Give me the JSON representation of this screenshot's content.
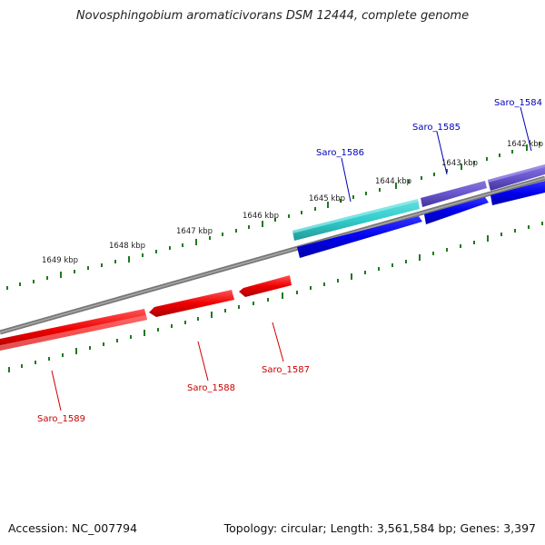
{
  "title": "Novosphingobium aromaticivorans DSM 12444, complete genome",
  "footer": {
    "accession": "Accession: NC_007794",
    "topology": "Topology: circular; Length: 3,561,584 bp; Genes: 3,397"
  },
  "colors": {
    "backbone": "#888888",
    "ticks": "#1f7a1f",
    "forward_genes": "#0000ee",
    "forward_label": "#0000bb",
    "reverse_genes": "#ee0000",
    "reverse_label": "#cc0000",
    "gene_1586": "#33cccc",
    "gene_1585": "#6655cc"
  },
  "scale_labels": [
    {
      "kbp": 1642,
      "label": "1642 kbp"
    },
    {
      "kbp": 1643,
      "label": "1643 kbp"
    },
    {
      "kbp": 1644,
      "label": "1644 kbp"
    },
    {
      "kbp": 1645,
      "label": "1645 kbp"
    },
    {
      "kbp": 1646,
      "label": "1646 kbp"
    },
    {
      "kbp": 1647,
      "label": "1647 kbp"
    },
    {
      "kbp": 1648,
      "label": "1648 kbp"
    },
    {
      "kbp": 1649,
      "label": "1649 kbp"
    }
  ],
  "genes": [
    {
      "id": "Saro_1584",
      "label": "Saro_1584",
      "strand": "forward"
    },
    {
      "id": "Saro_1585",
      "label": "Saro_1585",
      "strand": "forward"
    },
    {
      "id": "Saro_1586",
      "label": "Saro_1586",
      "strand": "forward"
    },
    {
      "id": "Saro_1587",
      "label": "Saro_1587",
      "strand": "reverse"
    },
    {
      "id": "Saro_1588",
      "label": "Saro_1588",
      "strand": "reverse"
    },
    {
      "id": "Saro_1589",
      "label": "Saro_1589",
      "strand": "reverse"
    }
  ]
}
